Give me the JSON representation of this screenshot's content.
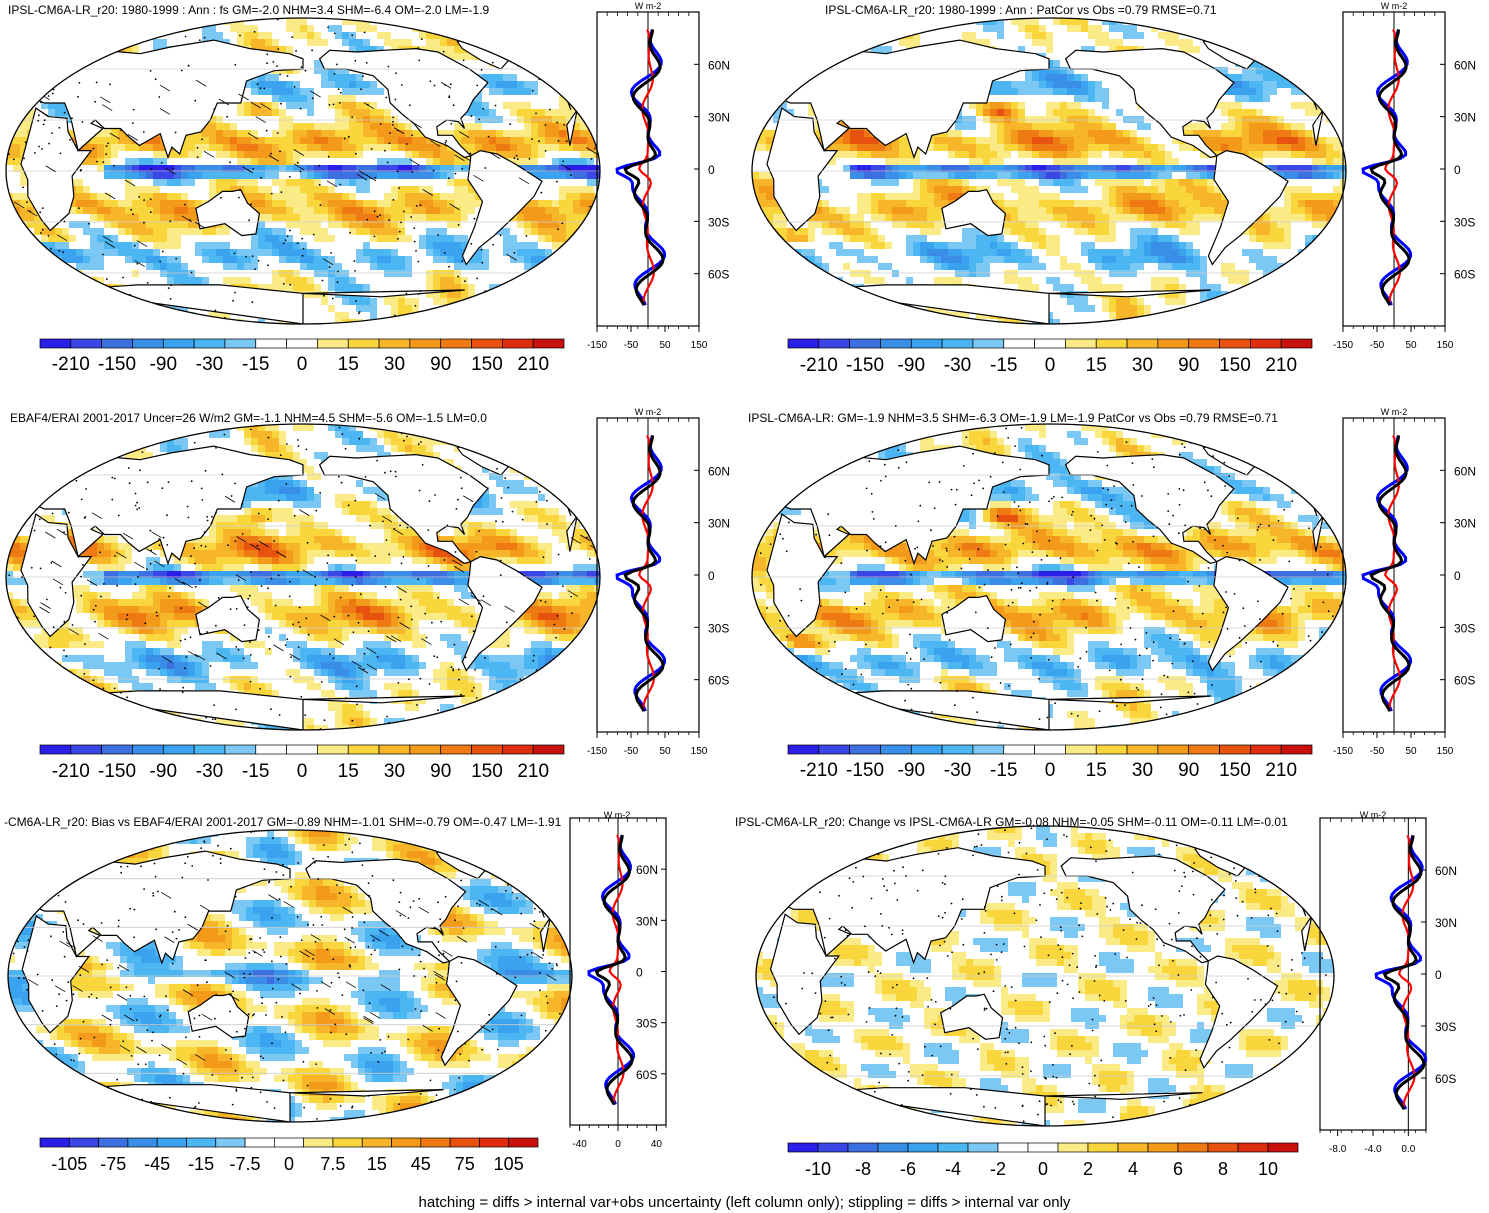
{
  "footer_note": "hatching = diffs > internal var+obs uncertainty (left column only); stippling = diffs > internal var only",
  "colors": {
    "palette": [
      "#2b1ee6",
      "#3b46e6",
      "#3c6fe0",
      "#3a8ee8",
      "#3aa2ef",
      "#4cb6f2",
      "#7ac8f3",
      "#ffffff",
      "#ffffff",
      "#fbeb86",
      "#f9d63c",
      "#f7b52a",
      "#f39a1b",
      "#ef7a14",
      "#e8520f",
      "#dd2c0e",
      "#c8100c"
    ],
    "land": "#ffffff",
    "zonal_model": "#0000ff",
    "zonal_obs": "#ff0000",
    "zonal_other": "#000000",
    "grid": "#cccccc"
  },
  "chart_data": [
    {
      "id": "model-climatology",
      "type": "heatmap",
      "title": "IPSL-CM6A-LR_r20: 1980-1999 : Ann : fs GM=-2.0 NHM=3.4 SHM=-6.4 OM=-2.0 LM=-1.9",
      "colorbar_labels": [
        "-210",
        "-150",
        "-90",
        "-30",
        "-15",
        "0",
        "15",
        "30",
        "90",
        "150",
        "210"
      ],
      "zonal_unit": "W m-2",
      "zonal_xticks": [
        {
          "v": -150,
          "t": "-150"
        },
        {
          "v": -50,
          "t": "-50"
        },
        {
          "v": 50,
          "t": "50"
        },
        {
          "v": 150,
          "t": "150"
        }
      ],
      "zonal_xlim": [
        -150,
        150
      ],
      "lat_ticks": [
        "60N",
        "30N",
        "0",
        "30S",
        "60S"
      ],
      "overlays": [
        "hatching",
        "stippling"
      ]
    },
    {
      "id": "model-patcor",
      "type": "heatmap",
      "title": "IPSL-CM6A-LR_r20: 1980-1999 : Ann : PatCor vs Obs =0.79 RMSE=0.71",
      "colorbar_labels": [
        "-210",
        "-150",
        "-90",
        "-30",
        "-15",
        "0",
        "15",
        "30",
        "90",
        "150",
        "210"
      ],
      "zonal_unit": "W m-2",
      "zonal_xticks": [
        {
          "v": -150,
          "t": "-150"
        },
        {
          "v": -50,
          "t": "-50"
        },
        {
          "v": 50,
          "t": "50"
        },
        {
          "v": 150,
          "t": "150"
        }
      ],
      "zonal_xlim": [
        -150,
        150
      ],
      "lat_ticks": [
        "60N",
        "30N",
        "0",
        "30S",
        "60S"
      ],
      "overlays": []
    },
    {
      "id": "observations",
      "type": "heatmap",
      "title": "EBAF4/ERAI 2001-2017 Uncer=26 W/m2 GM=-1.1 NHM=4.5 SHM=-5.6 OM=-1.5 LM=0.0",
      "colorbar_labels": [
        "-210",
        "-150",
        "-90",
        "-30",
        "-15",
        "0",
        "15",
        "30",
        "90",
        "150",
        "210"
      ],
      "zonal_unit": "W m-2",
      "zonal_xticks": [
        {
          "v": -150,
          "t": "-150"
        },
        {
          "v": -50,
          "t": "-50"
        },
        {
          "v": 50,
          "t": "50"
        },
        {
          "v": 150,
          "t": "150"
        }
      ],
      "zonal_xlim": [
        -150,
        150
      ],
      "lat_ticks": [
        "60N",
        "30N",
        "0",
        "30S",
        "60S"
      ],
      "overlays": [
        "hatching",
        "stippling"
      ]
    },
    {
      "id": "reference-model",
      "type": "heatmap",
      "title": "IPSL-CM6A-LR: GM=-1.9 NHM=3.5 SHM=-6.3 OM=-1.9 LM=-1.9 PatCor vs Obs =0.79 RMSE=0.71",
      "colorbar_labels": [
        "-210",
        "-150",
        "-90",
        "-30",
        "-15",
        "0",
        "15",
        "30",
        "90",
        "150",
        "210"
      ],
      "zonal_unit": "W m-2",
      "zonal_xticks": [
        {
          "v": -150,
          "t": "-150"
        },
        {
          "v": -50,
          "t": "-50"
        },
        {
          "v": 50,
          "t": "50"
        },
        {
          "v": 150,
          "t": "150"
        }
      ],
      "zonal_xlim": [
        -150,
        150
      ],
      "lat_ticks": [
        "60N",
        "30N",
        "0",
        "30S",
        "60S"
      ],
      "overlays": [
        "stippling"
      ]
    },
    {
      "id": "bias",
      "type": "heatmap",
      "title": "-CM6A-LR_r20: Bias vs EBAF4/ERAI 2001-2017 GM=-0.89 NHM=-1.01 SHM=-0.79 OM=-0.47 LM=-1.91",
      "colorbar_labels": [
        "-105",
        "-75",
        "-45",
        "-15",
        "-7.5",
        "0",
        "7.5",
        "15",
        "45",
        "75",
        "105"
      ],
      "zonal_unit": "W m-2",
      "zonal_xticks": [
        {
          "v": -40,
          "t": "-40"
        },
        {
          "v": 0,
          "t": "0"
        },
        {
          "v": 40,
          "t": "40"
        }
      ],
      "zonal_xlim": [
        -50,
        50
      ],
      "lat_ticks": [
        "60N",
        "30N",
        "0",
        "30S",
        "60S"
      ],
      "overlays": [
        "hatching",
        "stippling"
      ]
    },
    {
      "id": "change",
      "type": "heatmap",
      "title": "IPSL-CM6A-LR_r20: Change vs IPSL-CM6A-LR GM=-0.08 NHM=-0.05 SHM=-0.11 OM=-0.11 LM=-0.01",
      "colorbar_labels": [
        "-10",
        "-8",
        "-6",
        "-4",
        "-2",
        "0",
        "2",
        "4",
        "6",
        "8",
        "10"
      ],
      "zonal_unit": "W m-2",
      "zonal_xticks": [
        {
          "v": -8,
          "t": "-8.0"
        },
        {
          "v": -4,
          "t": "-4.0"
        },
        {
          "v": 0,
          "t": "0.0"
        }
      ],
      "zonal_xlim": [
        -10,
        2
      ],
      "lat_ticks": [
        "60N",
        "30N",
        "0",
        "30S",
        "60S"
      ],
      "overlays": [
        "stippling"
      ]
    }
  ]
}
